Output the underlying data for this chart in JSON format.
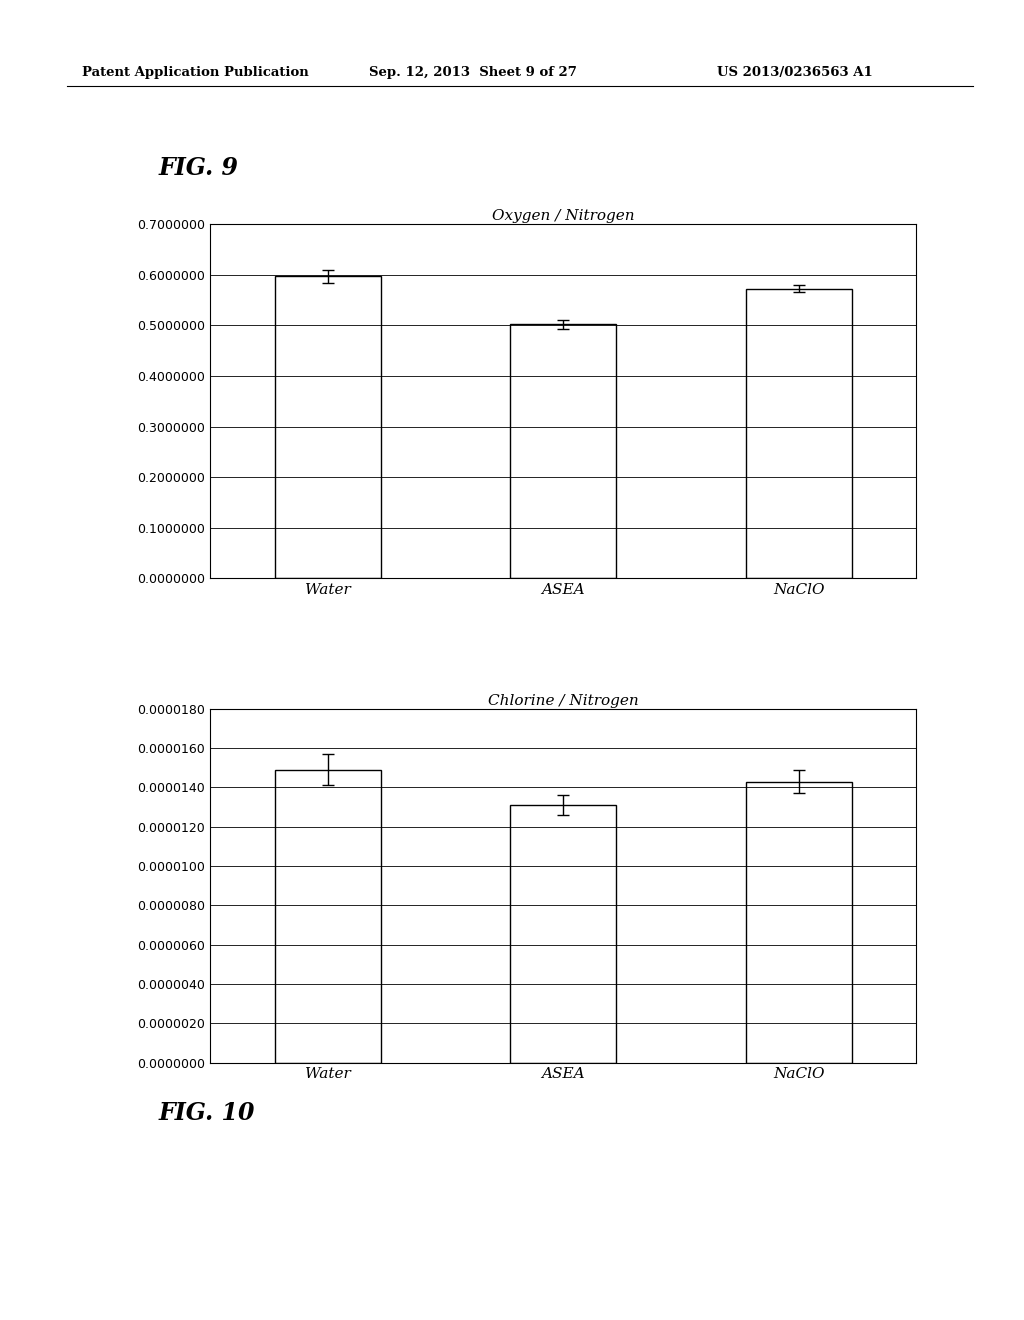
{
  "fig1": {
    "title": "Oxygen / Nitrogen",
    "categories": [
      "Water",
      "ASEA",
      "NaClO"
    ],
    "values": [
      0.597,
      0.502,
      0.573
    ],
    "errors": [
      0.012,
      0.008,
      0.007
    ],
    "ylim": [
      0.0,
      0.7
    ],
    "yticks": [
      0.0,
      0.1,
      0.2,
      0.3,
      0.4,
      0.5,
      0.6,
      0.7
    ],
    "fig_label": "FIG. 9"
  },
  "fig2": {
    "title": "Chlorine / Nitrogen",
    "categories": [
      "Water",
      "ASEA",
      "NaClO"
    ],
    "values": [
      1.49e-05,
      1.31e-05,
      1.43e-05
    ],
    "errors": [
      8e-07,
      5e-07,
      6e-07
    ],
    "ylim": [
      0.0,
      1.8e-05
    ],
    "yticks": [
      0.0,
      2e-06,
      4e-06,
      6e-06,
      8e-06,
      1e-05,
      1.2e-05,
      1.4e-05,
      1.6e-05,
      1.8e-05
    ],
    "fig_label": "FIG. 10"
  },
  "header_left": "Patent Application Publication",
  "header_mid": "Sep. 12, 2013  Sheet 9 of 27",
  "header_right": "US 2013/0236563 A1",
  "bar_color": "white",
  "bar_edgecolor": "black",
  "background_color": "white",
  "text_color": "black"
}
